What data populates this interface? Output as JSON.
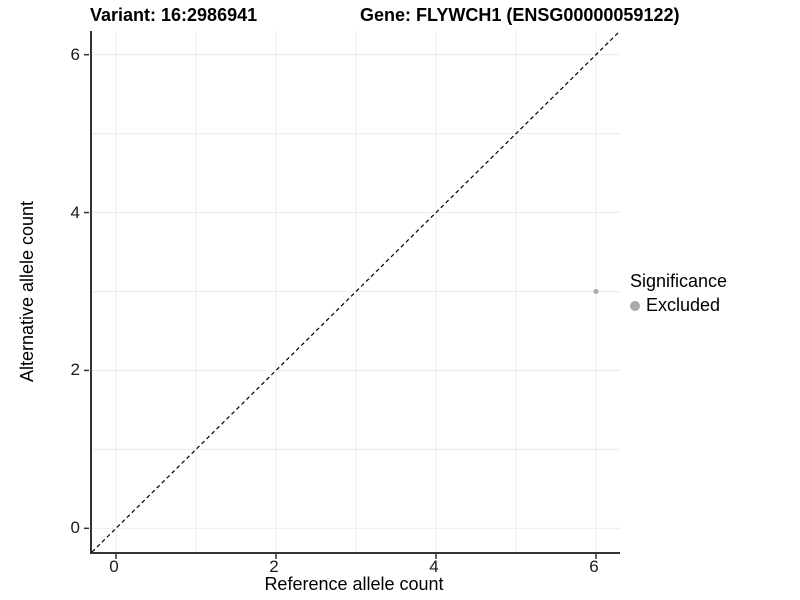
{
  "chart_data": {
    "type": "scatter",
    "title_left": "Variant: 16:2986941",
    "title_right": "Gene: FLYWCH1 (ENSG00000059122)",
    "xlabel": "Reference allele count",
    "ylabel": "Alternative allele count",
    "xlim": [
      -0.3,
      6.3
    ],
    "ylim": [
      -0.3,
      6.3
    ],
    "x_ticks": [
      0,
      2,
      4,
      6
    ],
    "y_ticks": [
      0,
      2,
      4,
      6
    ],
    "gridlines": {
      "major": [
        0,
        2,
        4,
        6
      ],
      "minor": [
        1,
        3,
        5
      ],
      "color": "#ebebeb"
    },
    "reference_line": {
      "type": "identity",
      "style": "dashed",
      "color": "#000000"
    },
    "points": [
      {
        "x": 6,
        "y": 3,
        "group": "Excluded",
        "color": "#aaaaaa"
      }
    ],
    "legend": {
      "title": "Significance",
      "position": "right",
      "entries": [
        {
          "label": "Excluded",
          "color": "#aaaaaa",
          "marker": "circle"
        }
      ]
    }
  },
  "colors": {
    "background": "#ffffff",
    "grid": "#ebebeb",
    "axis_line": "#333333",
    "tick": "#333333",
    "point": "#aaaaaa",
    "text": "#000000"
  }
}
